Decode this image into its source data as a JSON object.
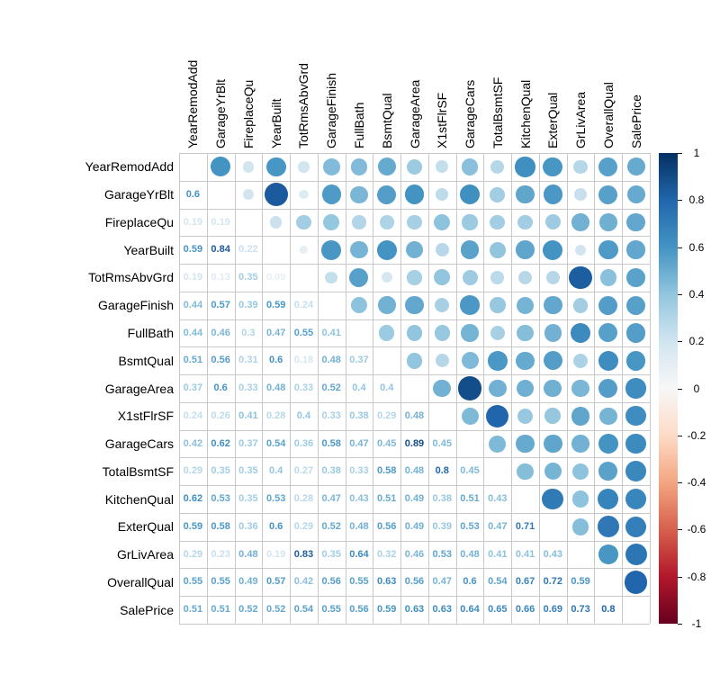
{
  "chart_data": {
    "type": "heatmap",
    "subtype": "correlation-matrix",
    "title": "",
    "variables": [
      "YearRemodAdd",
      "GarageYrBlt",
      "FireplaceQu",
      "YearBuilt",
      "TotRmsAbvGrd",
      "GarageFinish",
      "FullBath",
      "BsmtQual",
      "GarageArea",
      "X1stFlrSF",
      "GarageCars",
      "TotalBsmtSF",
      "KitchenQual",
      "ExterQual",
      "GrLivArea",
      "OverallQual",
      "SalePrice"
    ],
    "lower_triangle": [
      [],
      [
        0.6
      ],
      [
        0.19,
        0.19
      ],
      [
        0.59,
        0.84,
        0.22
      ],
      [
        0.19,
        0.13,
        0.35,
        0.09
      ],
      [
        0.44,
        0.57,
        0.39,
        0.59,
        0.24
      ],
      [
        0.44,
        0.46,
        0.3,
        0.47,
        0.55,
        0.41
      ],
      [
        0.51,
        0.56,
        0.31,
        0.6,
        0.18,
        0.48,
        0.37
      ],
      [
        0.37,
        0.6,
        0.33,
        0.48,
        0.33,
        0.52,
        0.4,
        0.4
      ],
      [
        0.24,
        0.26,
        0.41,
        0.28,
        0.4,
        0.33,
        0.38,
        0.29,
        0.48
      ],
      [
        0.42,
        0.62,
        0.37,
        0.54,
        0.36,
        0.58,
        0.47,
        0.45,
        0.89,
        0.45
      ],
      [
        0.29,
        0.35,
        0.35,
        0.4,
        0.27,
        0.38,
        0.33,
        0.58,
        0.48,
        0.8,
        0.45
      ],
      [
        0.62,
        0.53,
        0.35,
        0.53,
        0.28,
        0.47,
        0.43,
        0.51,
        0.49,
        0.38,
        0.51,
        0.43
      ],
      [
        0.59,
        0.58,
        0.36,
        0.6,
        0.29,
        0.52,
        0.48,
        0.56,
        0.49,
        0.39,
        0.53,
        0.47,
        0.71
      ],
      [
        0.29,
        0.23,
        0.48,
        0.19,
        0.83,
        0.35,
        0.64,
        0.32,
        0.46,
        0.53,
        0.48,
        0.41,
        0.41,
        0.43
      ],
      [
        0.55,
        0.55,
        0.49,
        0.57,
        0.42,
        0.56,
        0.55,
        0.63,
        0.56,
        0.47,
        0.6,
        0.54,
        0.67,
        0.72,
        0.59
      ],
      [
        0.51,
        0.51,
        0.52,
        0.52,
        0.54,
        0.55,
        0.56,
        0.59,
        0.63,
        0.63,
        0.64,
        0.65,
        0.66,
        0.69,
        0.73,
        0.8
      ]
    ],
    "upper_triangle_style": "circle",
    "lower_triangle_style": "number",
    "diagonal": "blank",
    "grid": true,
    "grid_color": "#c9c9c9",
    "colorbar": {
      "position": "right",
      "min": -1,
      "max": 1,
      "ticks": [
        "1",
        "0.8",
        "0.6",
        "0.4",
        "0.2",
        "0",
        "-0.2",
        "-0.4",
        "-0.6",
        "-0.8",
        "-1"
      ]
    },
    "palette": {
      "name": "RdBu-reversed",
      "stops": [
        -1,
        -0.8,
        -0.6,
        -0.4,
        -0.2,
        0,
        0.2,
        0.4,
        0.6,
        0.8,
        1
      ],
      "colors": [
        "#67001F",
        "#B2182B",
        "#D6604D",
        "#F4A582",
        "#FDDBC7",
        "#F7F7F7",
        "#D1E5F0",
        "#92C5DE",
        "#4393C3",
        "#2166AC",
        "#053061"
      ]
    }
  }
}
